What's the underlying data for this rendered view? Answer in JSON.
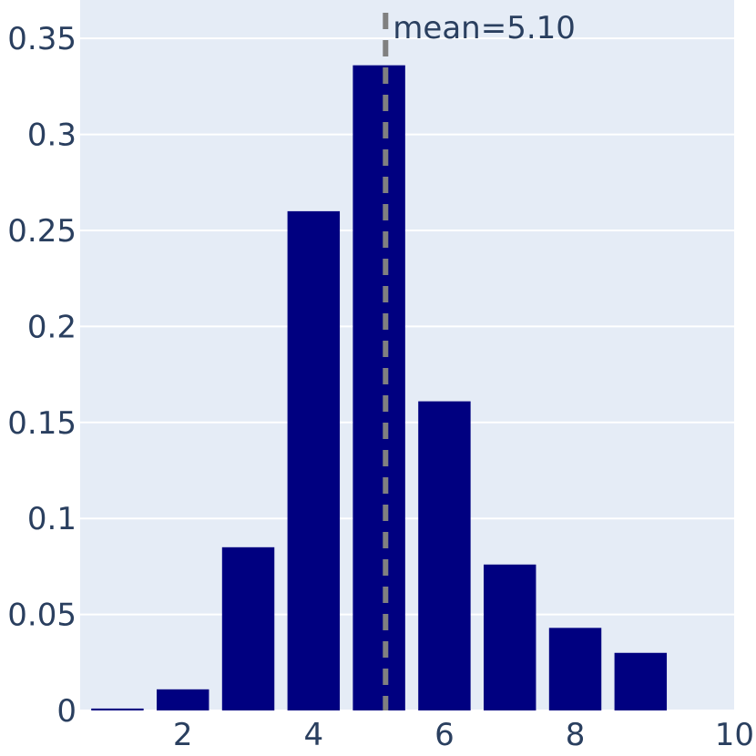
{
  "chart_data": {
    "type": "bar",
    "title": "",
    "xlabel": "",
    "ylabel": "",
    "x": [
      1,
      2,
      3,
      4,
      5,
      6,
      7,
      8,
      9
    ],
    "values": [
      0.001,
      0.011,
      0.085,
      0.26,
      0.336,
      0.161,
      0.076,
      0.043,
      0.03
    ],
    "bar_color": "#000080",
    "background_color": "#E5ECF6",
    "grid_color": "#ffffff",
    "grid": true,
    "xlim": [
      0.43,
      10.43
    ],
    "ylim": [
      0,
      0.37
    ],
    "xticks": [
      2,
      4,
      6,
      8,
      10
    ],
    "xtick_labels": [
      "2",
      "4",
      "6",
      "8",
      "10"
    ],
    "yticks": [
      0,
      0.05,
      0.1,
      0.15,
      0.2,
      0.25,
      0.3,
      0.35
    ],
    "ytick_labels": [
      "0",
      "0.05",
      "0.1",
      "0.15",
      "0.2",
      "0.25",
      "0.3",
      "0.35"
    ],
    "mean_line": {
      "x": 5.1,
      "label": "mean=5.10",
      "color": "#808080",
      "style": "dashed"
    }
  }
}
